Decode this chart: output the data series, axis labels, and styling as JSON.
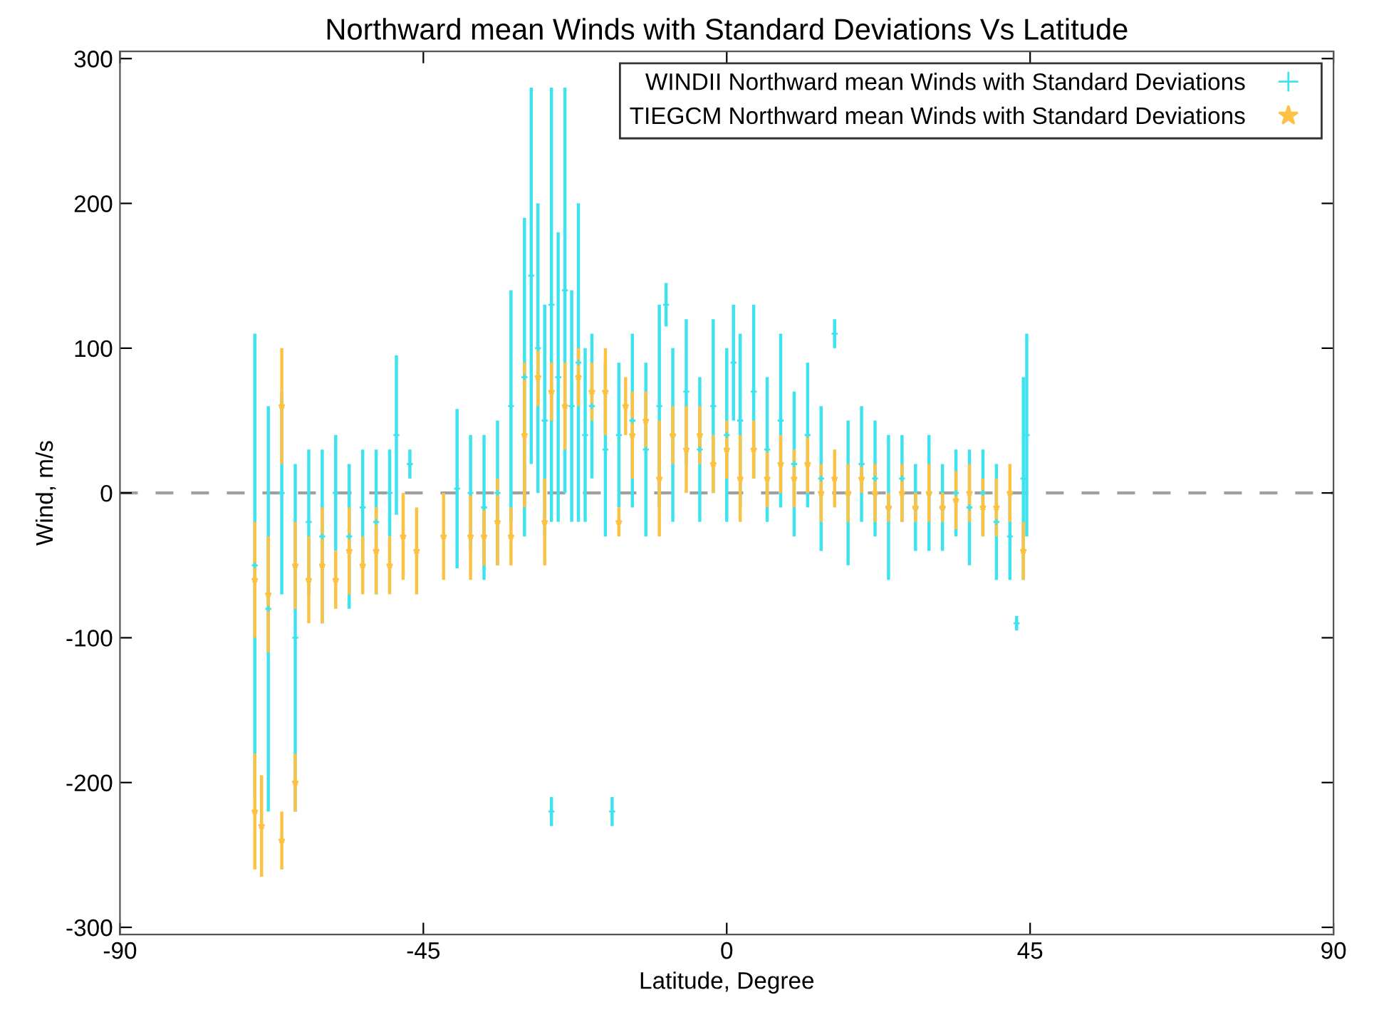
{
  "chart_data": {
    "type": "scatter",
    "title": "Northward mean Winds with Standard Deviations Vs Latitude",
    "xlabel": "Latitude, Degree",
    "ylabel": "Wind, m/s",
    "xlim": [
      -90,
      90
    ],
    "xticks": [
      -90,
      -45,
      0,
      45,
      90
    ],
    "ylim": [
      -305,
      305
    ],
    "yticks": [
      -300,
      -200,
      -100,
      0,
      100,
      200,
      300
    ],
    "grid": false,
    "legend": "top right",
    "ref_lines": [
      {
        "axis": "y",
        "value": 0,
        "color": "#a0a0a0",
        "line_style": "dashed"
      }
    ],
    "series": [
      {
        "name": "WINDII Northward mean Winds with Standard Deviations",
        "color": "#3de3ee",
        "marker": "cross",
        "x": [
          -70,
          -68,
          -66,
          -64,
          -62,
          -60,
          -58,
          -56,
          -54,
          -52,
          -50,
          -49,
          -47,
          -40,
          -38,
          -36,
          -34,
          -32,
          -30,
          -29,
          -28,
          -27,
          -26,
          -25,
          -24,
          -23,
          -22,
          -21,
          -20,
          -18,
          -16,
          -14,
          -12,
          -10,
          -9,
          -8,
          -6,
          -4,
          -2,
          0,
          1,
          2,
          4,
          6,
          8,
          10,
          12,
          14,
          16,
          18,
          20,
          22,
          24,
          26,
          28,
          30,
          32,
          34,
          36,
          38,
          40,
          42,
          43,
          44,
          44.5,
          -26,
          -17
        ],
        "values": [
          -50,
          -80,
          0,
          -100,
          -20,
          -30,
          0,
          -30,
          -10,
          -20,
          0,
          40,
          20,
          3,
          0,
          -10,
          0,
          60,
          80,
          150,
          100,
          50,
          130,
          80,
          140,
          60,
          90,
          40,
          60,
          30,
          40,
          50,
          30,
          60,
          130,
          40,
          70,
          30,
          60,
          40,
          90,
          50,
          70,
          30,
          50,
          20,
          40,
          10,
          110,
          0,
          20,
          10,
          -10,
          10,
          -10,
          0,
          -10,
          0,
          -10,
          0,
          -20,
          -30,
          -90,
          10,
          40,
          -220,
          -220
        ],
        "errors": [
          160,
          140,
          70,
          120,
          50,
          60,
          40,
          50,
          40,
          50,
          30,
          55,
          10,
          55,
          40,
          50,
          50,
          80,
          110,
          130,
          100,
          80,
          150,
          100,
          140,
          80,
          110,
          60,
          50,
          60,
          50,
          60,
          60,
          70,
          15,
          60,
          50,
          50,
          60,
          60,
          40,
          60,
          60,
          50,
          60,
          50,
          50,
          50,
          10,
          50,
          40,
          40,
          50,
          30,
          30,
          40,
          30,
          30,
          40,
          30,
          40,
          30,
          5,
          70,
          70,
          10,
          10
        ]
      },
      {
        "name": "TIEGCM Northward mean Winds with Standard Deviations",
        "color": "#fbc244",
        "marker": "star",
        "x": [
          -70,
          -70,
          -69,
          -68,
          -66,
          -66,
          -64,
          -64,
          -62,
          -60,
          -58,
          -56,
          -54,
          -52,
          -50,
          -48,
          -46,
          -42,
          -38,
          -36,
          -34,
          -32,
          -30,
          -28,
          -27,
          -26,
          -24,
          -22,
          -20,
          -18,
          -16,
          -15,
          -14,
          -12,
          -10,
          -8,
          -6,
          -4,
          -2,
          0,
          2,
          4,
          6,
          8,
          10,
          12,
          14,
          16,
          18,
          20,
          22,
          24,
          26,
          28,
          30,
          32,
          34,
          36,
          38,
          40,
          42,
          44
        ],
        "values": [
          -220,
          -60,
          -230,
          -70,
          -240,
          60,
          -200,
          -50,
          -60,
          -50,
          -60,
          -40,
          -50,
          -40,
          -50,
          -30,
          -40,
          -30,
          -30,
          -30,
          -20,
          -30,
          40,
          80,
          -20,
          70,
          60,
          80,
          70,
          70,
          -20,
          60,
          40,
          50,
          10,
          40,
          30,
          40,
          20,
          30,
          10,
          30,
          10,
          20,
          10,
          20,
          0,
          10,
          0,
          10,
          0,
          -10,
          0,
          -10,
          0,
          -10,
          -5,
          0,
          -10,
          -10,
          0,
          -40
        ],
        "errors": [
          40,
          40,
          35,
          40,
          20,
          40,
          20,
          30,
          30,
          40,
          20,
          30,
          20,
          30,
          20,
          30,
          30,
          30,
          30,
          20,
          30,
          20,
          50,
          20,
          30,
          20,
          30,
          20,
          20,
          30,
          10,
          20,
          30,
          20,
          40,
          20,
          30,
          20,
          20,
          20,
          30,
          20,
          20,
          20,
          20,
          20,
          20,
          20,
          20,
          10,
          20,
          10,
          20,
          10,
          20,
          10,
          20,
          20,
          20,
          20,
          20,
          20
        ]
      }
    ]
  }
}
